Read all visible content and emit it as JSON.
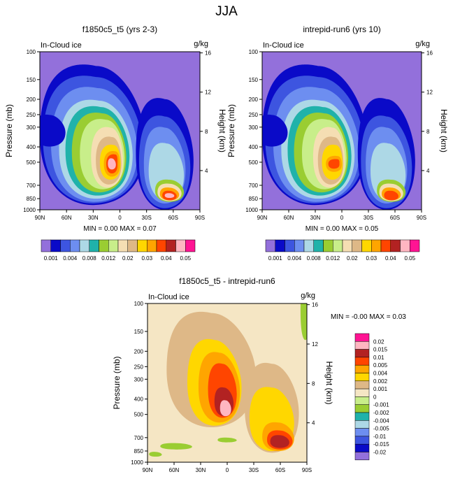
{
  "title": "JJA",
  "colors": {
    "seq": [
      "#9370db",
      "#0a0ac8",
      "#3d55e0",
      "#6d8ef0",
      "#add8e6",
      "#20b2aa",
      "#9acd32",
      "#c8ee8a",
      "#f5deb3",
      "#deb887",
      "#ffd700",
      "#ffa500",
      "#ff4500",
      "#b22222",
      "#ffb6c1",
      "#ff1493"
    ],
    "diff": [
      "#9370db",
      "#0a0ac8",
      "#3d55e0",
      "#6d8ef0",
      "#add8e6",
      "#20b2aa",
      "#9acd32",
      "#c8ee8a",
      "#f5e6c4",
      "#deb887",
      "#ffd700",
      "#ffa500",
      "#ff4500",
      "#b22222",
      "#ffb6c1",
      "#ff1493"
    ]
  },
  "chart_data": [
    {
      "type": "contour",
      "title": "f1850c5_t5 (yrs 2-3)",
      "field_label": "In-Cloud ice",
      "units": "g/kg",
      "ylabel": "Pressure (mb)",
      "ylabel_right": "Height (km)",
      "x_ticks": [
        "90N",
        "60N",
        "30N",
        "0",
        "30S",
        "60S",
        "90S"
      ],
      "p_ticks": [
        100,
        150,
        200,
        250,
        300,
        400,
        500,
        700,
        850,
        1000
      ],
      "z_ticks": [
        4,
        8,
        12,
        16
      ],
      "stats": "MIN =  0.00  MAX =  0.07",
      "legend_labels": [
        "0.001",
        "0.004",
        "0.008",
        "0.012",
        "0.02",
        "0.03",
        "0.04",
        "0.05"
      ]
    },
    {
      "type": "contour",
      "title": "intrepid-run6 (yrs 10)",
      "field_label": "In-Cloud ice",
      "units": "g/kg",
      "ylabel": "Pressure (mb)",
      "ylabel_right": "Height (km)",
      "x_ticks": [
        "90N",
        "60N",
        "30N",
        "0",
        "30S",
        "60S",
        "90S"
      ],
      "p_ticks": [
        100,
        150,
        200,
        250,
        300,
        400,
        500,
        700,
        850,
        1000
      ],
      "z_ticks": [
        4,
        8,
        12,
        16
      ],
      "stats": "MIN =  0.00  MAX =  0.05",
      "legend_labels": [
        "0.001",
        "0.004",
        "0.008",
        "0.012",
        "0.02",
        "0.03",
        "0.04",
        "0.05"
      ]
    },
    {
      "type": "contour",
      "title": "f1850c5_t5 - intrepid-run6",
      "field_label": "In-Cloud ice",
      "units": "g/kg",
      "ylabel": "Pressure (mb)",
      "ylabel_right": "Height (km)",
      "x_ticks": [
        "90N",
        "60N",
        "30N",
        "0",
        "30S",
        "60S",
        "90S"
      ],
      "p_ticks": [
        100,
        150,
        200,
        250,
        300,
        400,
        500,
        700,
        850,
        1000
      ],
      "z_ticks": [
        4,
        8,
        12,
        16
      ],
      "stats": "MIN = -0.00  MAX =  0.03",
      "legend_labels": [
        "0.02",
        "0.015",
        "0.01",
        "0.005",
        "0.004",
        "0.002",
        "0.001",
        "0",
        "-0.001",
        "-0.002",
        "-0.004",
        "-0.005",
        "-0.01",
        "-0.015",
        "-0.02"
      ]
    }
  ]
}
